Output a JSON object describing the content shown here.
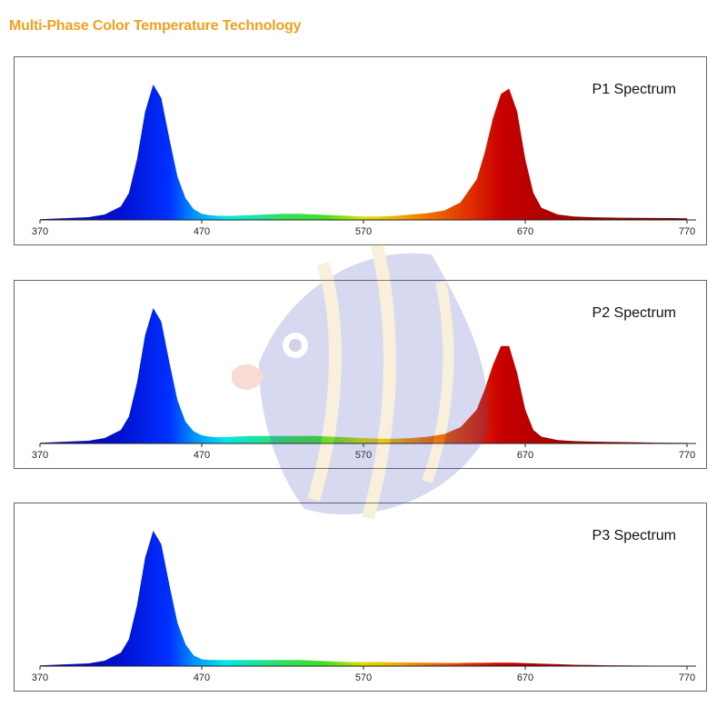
{
  "page_title": "Multi-Phase Color Temperature Technology",
  "x_ticks": [
    "370",
    "470",
    "570",
    "670",
    "770"
  ],
  "chart_data": [
    {
      "type": "area",
      "title": "P1 Spectrum",
      "xlabel": "",
      "ylabel": "",
      "xlim": [
        370,
        770
      ],
      "ylim": [
        0,
        1
      ],
      "x": [
        370,
        380,
        390,
        400,
        410,
        420,
        425,
        430,
        435,
        440,
        445,
        450,
        455,
        460,
        465,
        470,
        475,
        480,
        490,
        500,
        510,
        520,
        530,
        540,
        550,
        560,
        570,
        580,
        590,
        600,
        610,
        620,
        630,
        640,
        645,
        650,
        655,
        660,
        665,
        670,
        675,
        680,
        690,
        700,
        710,
        720,
        730,
        740,
        750,
        760,
        770
      ],
      "values": [
        0.005,
        0.01,
        0.015,
        0.02,
        0.04,
        0.1,
        0.2,
        0.45,
        0.8,
        1.0,
        0.9,
        0.6,
        0.32,
        0.16,
        0.08,
        0.045,
        0.035,
        0.03,
        0.03,
        0.035,
        0.04,
        0.045,
        0.045,
        0.04,
        0.035,
        0.03,
        0.025,
        0.025,
        0.03,
        0.04,
        0.05,
        0.07,
        0.13,
        0.3,
        0.5,
        0.75,
        0.93,
        0.97,
        0.8,
        0.45,
        0.2,
        0.09,
        0.04,
        0.025,
        0.02,
        0.018,
        0.016,
        0.015,
        0.014,
        0.013,
        0.012
      ],
      "grid": false,
      "legend": "none"
    },
    {
      "type": "area",
      "title": "P2 Spectrum",
      "xlabel": "",
      "ylabel": "",
      "xlim": [
        370,
        770
      ],
      "ylim": [
        0,
        1
      ],
      "x": [
        370,
        380,
        390,
        400,
        410,
        420,
        425,
        430,
        435,
        440,
        445,
        450,
        455,
        460,
        465,
        470,
        475,
        480,
        490,
        500,
        510,
        520,
        530,
        540,
        550,
        560,
        570,
        580,
        590,
        600,
        610,
        620,
        630,
        640,
        645,
        650,
        655,
        660,
        665,
        670,
        675,
        680,
        690,
        700,
        710,
        720,
        730,
        740,
        750,
        760,
        770
      ],
      "values": [
        0.005,
        0.01,
        0.015,
        0.02,
        0.04,
        0.1,
        0.2,
        0.45,
        0.8,
        1.0,
        0.9,
        0.6,
        0.32,
        0.16,
        0.09,
        0.06,
        0.05,
        0.045,
        0.05,
        0.055,
        0.055,
        0.055,
        0.055,
        0.055,
        0.05,
        0.045,
        0.04,
        0.035,
        0.035,
        0.04,
        0.05,
        0.07,
        0.12,
        0.25,
        0.4,
        0.58,
        0.72,
        0.72,
        0.52,
        0.25,
        0.1,
        0.05,
        0.025,
        0.018,
        0.014,
        0.012,
        0.01,
        0.008,
        0.006,
        0.005,
        0.004
      ],
      "grid": false,
      "legend": "none"
    },
    {
      "type": "area",
      "title": "P3 Spectrum",
      "xlabel": "",
      "ylabel": "",
      "xlim": [
        370,
        770
      ],
      "ylim": [
        0,
        1
      ],
      "x": [
        370,
        380,
        390,
        400,
        410,
        420,
        425,
        430,
        435,
        440,
        445,
        450,
        455,
        460,
        465,
        470,
        475,
        480,
        490,
        500,
        510,
        520,
        530,
        540,
        550,
        560,
        570,
        580,
        590,
        600,
        610,
        620,
        630,
        640,
        645,
        650,
        655,
        660,
        665,
        670,
        675,
        680,
        690,
        700,
        710,
        720,
        730,
        740,
        750,
        760,
        770
      ],
      "values": [
        0.005,
        0.01,
        0.015,
        0.02,
        0.04,
        0.1,
        0.2,
        0.45,
        0.8,
        1.0,
        0.9,
        0.6,
        0.32,
        0.16,
        0.08,
        0.05,
        0.045,
        0.045,
        0.045,
        0.045,
        0.045,
        0.045,
        0.045,
        0.04,
        0.035,
        0.03,
        0.03,
        0.03,
        0.028,
        0.026,
        0.024,
        0.023,
        0.023,
        0.024,
        0.024,
        0.025,
        0.025,
        0.025,
        0.024,
        0.022,
        0.02,
        0.018,
        0.014,
        0.01,
        0.008,
        0.006,
        0.005,
        0.004,
        0.003,
        0.002,
        0.001
      ],
      "grid": false,
      "legend": "none"
    }
  ]
}
